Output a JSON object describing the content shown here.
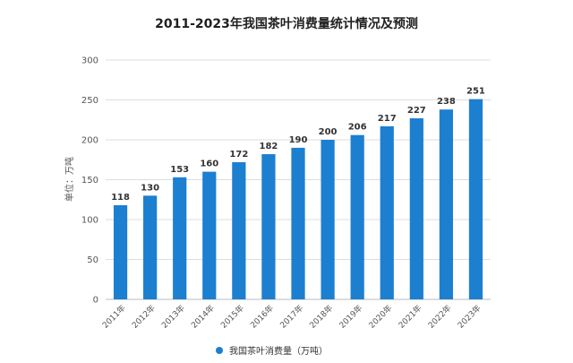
{
  "chart_data": {
    "type": "bar",
    "title": "2011-2023年我国茶叶消费量统计情况及预测",
    "ylabel": "单位：万吨",
    "xlabel": "",
    "categories": [
      "2011年",
      "2012年",
      "2013年",
      "2014年",
      "2015年",
      "2016年",
      "2017年",
      "2018年",
      "2019年",
      "2020年",
      "2021年",
      "2022年",
      "2023年"
    ],
    "series": [
      {
        "name": "我国茶叶消费量（万吨）",
        "color": "#1d7fd0",
        "values": [
          118,
          130,
          153,
          160,
          172,
          182,
          190,
          200,
          206,
          217,
          227,
          238,
          251
        ]
      }
    ],
    "ylim": [
      0,
      300
    ],
    "yticks": [
      0,
      50,
      100,
      150,
      200,
      250,
      300
    ],
    "grid": true,
    "legend_position": "bottom-center"
  }
}
